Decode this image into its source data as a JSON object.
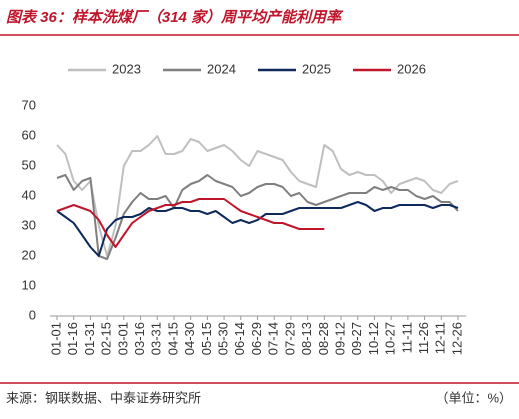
{
  "chart_data": {
    "type": "line",
    "title": "图表 36：样本洗煤厂（314 家）周平均产能利用率",
    "source": "来源：钢联数据、中泰证券研究所",
    "unit_note": "（单位：%）",
    "categories": [
      "01-01",
      null,
      "01-16",
      null,
      "01-31",
      null,
      "02-15",
      null,
      "03-01",
      null,
      "03-16",
      null,
      "03-31",
      null,
      "04-15",
      null,
      "04-30",
      null,
      "05-15",
      null,
      "05-30",
      null,
      "06-14",
      null,
      "06-29",
      null,
      "07-14",
      null,
      "07-29",
      null,
      "08-13",
      null,
      "08-28",
      null,
      "09-12",
      null,
      "09-27",
      null,
      "10-12",
      null,
      "10-27",
      null,
      "11-11",
      null,
      "11-26",
      null,
      "12-11",
      null,
      "12-26"
    ],
    "ylim": [
      0,
      70
    ],
    "yticks": [
      0,
      10,
      20,
      30,
      40,
      50,
      60,
      70
    ],
    "grid": false,
    "series": [
      {
        "name": "2023",
        "color": "#bfbfbf",
        "values": [
          57,
          54,
          45,
          42,
          45,
          30,
          20,
          30,
          50,
          55,
          55,
          57,
          60,
          54,
          54,
          55,
          59,
          58,
          55,
          56,
          57,
          55,
          52,
          50,
          55,
          54,
          53,
          52,
          48,
          45,
          44,
          43,
          57,
          55,
          49,
          47,
          48,
          47,
          47,
          45,
          41,
          44,
          45,
          46,
          45,
          42,
          41,
          44,
          45
        ]
      },
      {
        "name": "2024",
        "color": "#7f7f7f",
        "values": [
          46,
          47,
          42,
          45,
          46,
          20,
          19,
          26,
          34,
          38,
          41,
          39,
          39,
          40,
          36,
          42,
          44,
          45,
          47,
          45,
          44,
          43,
          40,
          41,
          43,
          44,
          44,
          43,
          40,
          41,
          38,
          37,
          38,
          39,
          40,
          41,
          41,
          41,
          43,
          42,
          43,
          42,
          42,
          40,
          39,
          40,
          38,
          38,
          35
        ]
      },
      {
        "name": "2025",
        "color": "#0e2a5c",
        "values": [
          35,
          33,
          31,
          27,
          23,
          20,
          29,
          32,
          33,
          33,
          34,
          36,
          35,
          35,
          36,
          36,
          35,
          35,
          34,
          35,
          33,
          31,
          32,
          31,
          32,
          34,
          34,
          34,
          35,
          36,
          36,
          36,
          36,
          36,
          36,
          37,
          38,
          37,
          35,
          36,
          36,
          37,
          37,
          37,
          37,
          36,
          37,
          37,
          36
        ]
      },
      {
        "name": "2026",
        "color": "#c0162c",
        "values": [
          35,
          36,
          37,
          36,
          35,
          32,
          27,
          23,
          27,
          31,
          33,
          35,
          36,
          37,
          37,
          38,
          38,
          39,
          39,
          39,
          39,
          37,
          35,
          34,
          33,
          32,
          31,
          31,
          30,
          29,
          29,
          29,
          29,
          null,
          null,
          null,
          null,
          null,
          null,
          null,
          null,
          null,
          null,
          null,
          null,
          null,
          null,
          null,
          null
        ]
      }
    ]
  }
}
